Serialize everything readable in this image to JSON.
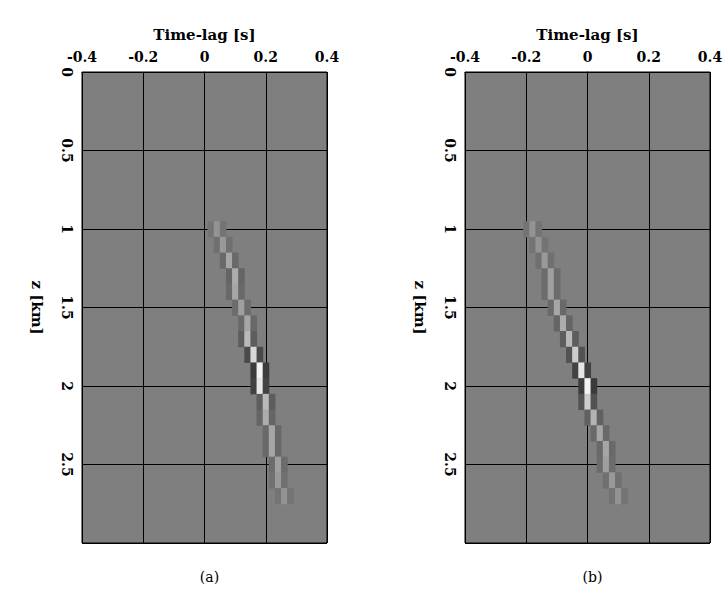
{
  "chart_data": [
    {
      "type": "heatmap",
      "title": "(a)",
      "x_label": "Time-lag [s]",
      "y_label": "z [km]",
      "xlim": [
        -0.4,
        0.4
      ],
      "xticks": [
        -0.4,
        -0.2,
        0,
        0.2,
        0.4
      ],
      "ylim": [
        0,
        3
      ],
      "yticks": [
        0,
        0.5,
        1,
        1.5,
        2,
        2.5
      ],
      "grid": true,
      "color_range": [
        -1,
        1
      ],
      "cells": [
        [
          0.02,
          1.0,
          -0.09
        ],
        [
          0.04,
          1.0,
          0.15
        ],
        [
          0.06,
          1.0,
          -0.09
        ],
        [
          0.04,
          1.1,
          -0.12
        ],
        [
          0.06,
          1.1,
          0.2
        ],
        [
          0.08,
          1.1,
          -0.12
        ],
        [
          0.06,
          1.2,
          -0.18
        ],
        [
          0.08,
          1.2,
          0.3
        ],
        [
          0.1,
          1.2,
          -0.18
        ],
        [
          0.08,
          1.3,
          -0.21
        ],
        [
          0.1,
          1.3,
          0.35
        ],
        [
          0.12,
          1.3,
          -0.21
        ],
        [
          0.08,
          1.4,
          -0.18
        ],
        [
          0.1,
          1.4,
          0.3
        ],
        [
          0.12,
          1.4,
          -0.18
        ],
        [
          0.1,
          1.5,
          -0.15
        ],
        [
          0.12,
          1.5,
          0.25
        ],
        [
          0.14,
          1.5,
          -0.15
        ],
        [
          0.12,
          1.6,
          -0.18
        ],
        [
          0.14,
          1.6,
          0.3
        ],
        [
          0.16,
          1.6,
          -0.18
        ],
        [
          0.12,
          1.7,
          -0.27
        ],
        [
          0.14,
          1.7,
          0.45
        ],
        [
          0.16,
          1.7,
          -0.27
        ],
        [
          0.14,
          1.8,
          -0.42
        ],
        [
          0.16,
          1.8,
          0.7
        ],
        [
          0.18,
          1.8,
          -0.42
        ],
        [
          0.16,
          1.9,
          -0.54
        ],
        [
          0.18,
          1.9,
          0.9
        ],
        [
          0.2,
          1.9,
          -0.54
        ],
        [
          0.16,
          2.0,
          -0.48
        ],
        [
          0.18,
          2.0,
          0.8
        ],
        [
          0.2,
          2.0,
          -0.48
        ],
        [
          0.18,
          2.1,
          -0.27
        ],
        [
          0.2,
          2.1,
          0.45
        ],
        [
          0.22,
          2.1,
          -0.27
        ],
        [
          0.18,
          2.2,
          -0.21
        ],
        [
          0.2,
          2.2,
          0.35
        ],
        [
          0.22,
          2.2,
          -0.21
        ],
        [
          0.2,
          2.3,
          -0.18
        ],
        [
          0.22,
          2.3,
          0.3
        ],
        [
          0.24,
          2.3,
          -0.18
        ],
        [
          0.2,
          2.4,
          -0.18
        ],
        [
          0.22,
          2.4,
          0.3
        ],
        [
          0.24,
          2.4,
          -0.18
        ],
        [
          0.22,
          2.5,
          -0.15
        ],
        [
          0.24,
          2.5,
          0.25
        ],
        [
          0.26,
          2.5,
          -0.15
        ],
        [
          0.22,
          2.6,
          -0.12
        ],
        [
          0.24,
          2.6,
          0.2
        ],
        [
          0.26,
          2.6,
          -0.12
        ],
        [
          0.24,
          2.7,
          -0.09
        ],
        [
          0.26,
          2.7,
          0.15
        ],
        [
          0.28,
          2.7,
          -0.09
        ]
      ]
    },
    {
      "type": "heatmap",
      "title": "(b)",
      "x_label": "Time-lag [s]",
      "y_label": "z [km]",
      "xlim": [
        -0.4,
        0.4
      ],
      "xticks": [
        -0.4,
        -0.2,
        0,
        0.2,
        0.4
      ],
      "ylim": [
        0,
        3
      ],
      "yticks": [
        0,
        0.5,
        1,
        1.5,
        2,
        2.5
      ],
      "grid": true,
      "color_range": [
        -1,
        1
      ],
      "cells": [
        [
          -0.2,
          1.0,
          -0.09
        ],
        [
          -0.18,
          1.0,
          0.15
        ],
        [
          -0.16,
          1.0,
          -0.09
        ],
        [
          -0.18,
          1.1,
          -0.09
        ],
        [
          -0.16,
          1.1,
          0.15
        ],
        [
          -0.14,
          1.1,
          -0.09
        ],
        [
          -0.16,
          1.2,
          -0.12
        ],
        [
          -0.14,
          1.2,
          0.2
        ],
        [
          -0.12,
          1.2,
          -0.12
        ],
        [
          -0.14,
          1.3,
          -0.15
        ],
        [
          -0.12,
          1.3,
          0.25
        ],
        [
          -0.1,
          1.3,
          -0.15
        ],
        [
          -0.14,
          1.4,
          -0.15
        ],
        [
          -0.12,
          1.4,
          0.25
        ],
        [
          -0.1,
          1.4,
          -0.15
        ],
        [
          -0.12,
          1.5,
          -0.18
        ],
        [
          -0.1,
          1.5,
          0.3
        ],
        [
          -0.08,
          1.5,
          -0.18
        ],
        [
          -0.1,
          1.6,
          -0.21
        ],
        [
          -0.08,
          1.6,
          0.35
        ],
        [
          -0.06,
          1.6,
          -0.21
        ],
        [
          -0.08,
          1.7,
          -0.27
        ],
        [
          -0.06,
          1.7,
          0.45
        ],
        [
          -0.04,
          1.7,
          -0.27
        ],
        [
          -0.06,
          1.8,
          -0.36
        ],
        [
          -0.04,
          1.8,
          0.6
        ],
        [
          -0.02,
          1.8,
          -0.36
        ],
        [
          -0.04,
          1.9,
          -0.48
        ],
        [
          -0.02,
          1.9,
          0.8
        ],
        [
          0,
          1.9,
          -0.48
        ],
        [
          -0.02,
          2.0,
          -0.54
        ],
        [
          0,
          2.0,
          0.9
        ],
        [
          0.02,
          2.0,
          -0.54
        ],
        [
          -0.02,
          2.1,
          -0.36
        ],
        [
          0,
          2.1,
          0.6
        ],
        [
          0.02,
          2.1,
          -0.36
        ],
        [
          0,
          2.2,
          -0.24
        ],
        [
          0.02,
          2.2,
          0.4
        ],
        [
          0.04,
          2.2,
          -0.24
        ],
        [
          0.02,
          2.3,
          -0.18
        ],
        [
          0.04,
          2.3,
          0.3
        ],
        [
          0.06,
          2.3,
          -0.18
        ],
        [
          0.04,
          2.4,
          -0.18
        ],
        [
          0.06,
          2.4,
          0.3
        ],
        [
          0.08,
          2.4,
          -0.18
        ],
        [
          0.04,
          2.5,
          -0.15
        ],
        [
          0.06,
          2.5,
          0.25
        ],
        [
          0.08,
          2.5,
          -0.15
        ],
        [
          0.06,
          2.6,
          -0.12
        ],
        [
          0.08,
          2.6,
          0.2
        ],
        [
          0.1,
          2.6,
          -0.12
        ],
        [
          0.08,
          2.7,
          -0.09
        ],
        [
          0.1,
          2.7,
          0.15
        ],
        [
          0.12,
          2.7,
          -0.09
        ]
      ]
    }
  ]
}
